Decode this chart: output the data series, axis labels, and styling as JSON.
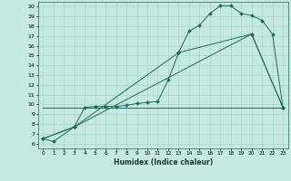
{
  "title": "",
  "xlabel": "Humidex (Indice chaleur)",
  "bg_color": "#c5e8e0",
  "grid_color": "#a8cfc8",
  "line_color": "#1a6b5a",
  "xlim": [
    -0.5,
    23.5
  ],
  "ylim": [
    5.5,
    20.5
  ],
  "xticks": [
    0,
    1,
    2,
    3,
    4,
    5,
    6,
    7,
    8,
    9,
    10,
    11,
    12,
    13,
    14,
    15,
    16,
    17,
    18,
    19,
    20,
    21,
    22,
    23
  ],
  "yticks": [
    6,
    7,
    8,
    9,
    10,
    11,
    12,
    13,
    14,
    15,
    16,
    17,
    18,
    19,
    20
  ],
  "line1_x": [
    0,
    1,
    3,
    4,
    5,
    6,
    7,
    8,
    9,
    10,
    11,
    12,
    13,
    14,
    15,
    16,
    17,
    18,
    19,
    20,
    21,
    22,
    23
  ],
  "line1_y": [
    6.5,
    6.2,
    7.7,
    9.7,
    9.8,
    9.8,
    9.8,
    9.9,
    10.1,
    10.2,
    10.3,
    12.5,
    15.3,
    17.5,
    18.1,
    19.3,
    20.1,
    20.1,
    19.3,
    19.1,
    18.6,
    17.2,
    9.7
  ],
  "line2_x": [
    0,
    3,
    13,
    20,
    23
  ],
  "line2_y": [
    6.5,
    7.7,
    15.3,
    17.2,
    9.7
  ],
  "line3_x": [
    0,
    3,
    20,
    23
  ],
  "line3_y": [
    6.5,
    7.7,
    17.2,
    9.7
  ],
  "line4_x": [
    0,
    23
  ],
  "line4_y": [
    9.7,
    9.7
  ]
}
